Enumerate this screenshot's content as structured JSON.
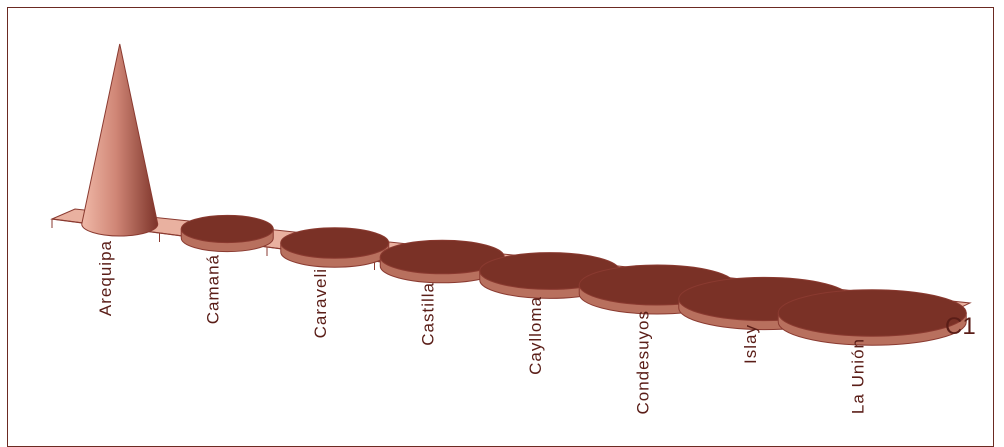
{
  "chart_data": {
    "type": "bar",
    "style": "3d-cone",
    "categories": [
      "Arequipa",
      "Camaná",
      "Caraveli",
      "Castilla",
      "Caylloma",
      "Condesuyos",
      "Islay",
      "La Unión"
    ],
    "series": [
      {
        "name": "C1",
        "values": [
          100,
          4,
          4,
          4,
          4,
          4,
          4,
          4
        ]
      }
    ],
    "grid": false,
    "colors": {
      "base": "#a8604f",
      "cone_light": "#f0b9a8",
      "cone_dark": "#7d342a",
      "disc_top": "#7a3126",
      "disc_side": "#b8705e",
      "floor": "#e9b1a0",
      "floor_edge": "#8a3a30",
      "axis_text": "#5a1d17"
    }
  }
}
